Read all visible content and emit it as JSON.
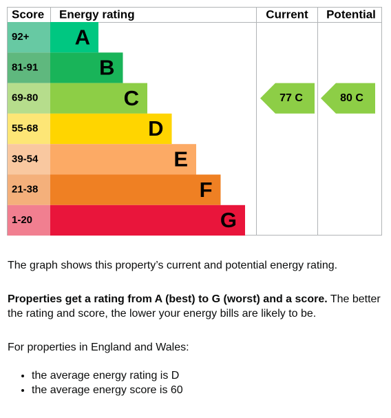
{
  "table": {
    "headers": [
      "Score",
      "Energy rating",
      "Current",
      "Potential"
    ],
    "bands": [
      {
        "score": "92+",
        "rating": "A",
        "color": "#00c781",
        "score_color": "#67c9a3"
      },
      {
        "score": "81-91",
        "rating": "B",
        "color": "#19b459",
        "score_color": "#5fb87e"
      },
      {
        "score": "69-80",
        "rating": "C",
        "color": "#8dce46",
        "score_color": "#b6dd8c"
      },
      {
        "score": "55-68",
        "rating": "D",
        "color": "#ffd500",
        "score_color": "#fde676"
      },
      {
        "score": "39-54",
        "rating": "E",
        "color": "#fcaa65",
        "score_color": "#f9c8a0"
      },
      {
        "score": "21-38",
        "rating": "F",
        "color": "#ef8023",
        "score_color": "#f4b07b"
      },
      {
        "score": "1-20",
        "rating": "G",
        "color": "#e9153b",
        "score_color": "#f17f90"
      }
    ],
    "current": "77 C",
    "potential": "80 C"
  },
  "text": {
    "intro": "The graph shows this property’s current and potential energy rating.",
    "bold": "Properties get a rating from A (best) to G (worst) and a score.",
    "rest": " The better the rating and score, the lower your energy bills are likely to be.",
    "eligibility": "For properties in England and Wales:",
    "list": [
      "the average energy rating is D",
      "the average energy score is 60"
    ]
  }
}
